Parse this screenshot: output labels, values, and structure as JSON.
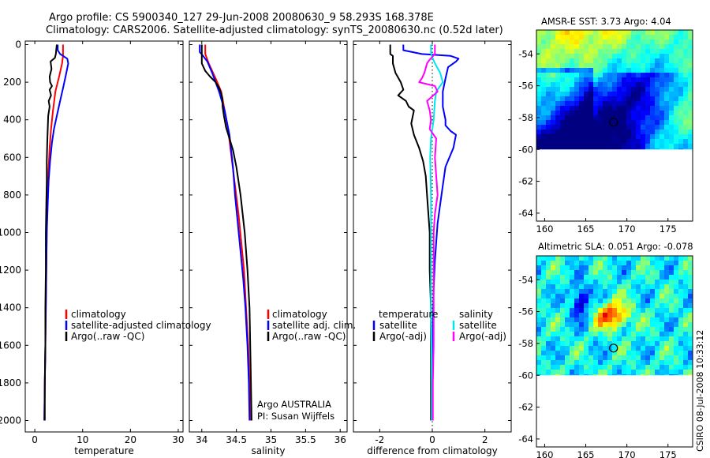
{
  "figure": {
    "title_line1": "Argo profile: CS 5900340_127 29-Jun-2008 20080630_9 58.293S 168.378E",
    "title_line2": "Climatology: CARS2006. Satellite-adjusted climatology: synTS_20080630.nc (0.52d later)",
    "footer": "CSIRO 08-Jul-2008 10:33:12",
    "credit_line1": "Argo AUSTRALIA",
    "credit_line2": "PI: Susan Wijffels"
  },
  "colors": {
    "climatology": "#ff0000",
    "satellite": "#0000ff",
    "argo": "#000000",
    "salinity_satellite": "#00e5ee",
    "salinity_argo": "#ff00ff",
    "map_land_missing": "#ffffff"
  },
  "chart_data": [
    {
      "id": "temperature",
      "type": "line",
      "xlabel": "temperature",
      "ylabel": "",
      "xlim": [
        -2,
        31
      ],
      "ylim": [
        2050,
        0
      ],
      "xticks": [
        "0",
        "10",
        "20",
        "30"
      ],
      "yticks": [
        "0",
        "200",
        "400",
        "600",
        "800",
        "1000",
        "1200",
        "1400",
        "1600",
        "1800",
        "2000"
      ],
      "legend_position": "lower-right",
      "series": [
        {
          "name": "climatology",
          "color": "#ff0000",
          "points": [
            [
              5.9,
              0
            ],
            [
              5.9,
              60
            ],
            [
              5.7,
              100
            ],
            [
              5.0,
              180
            ],
            [
              4.3,
              250
            ],
            [
              3.8,
              350
            ],
            [
              3.4,
              450
            ],
            [
              3.1,
              550
            ],
            [
              2.8,
              700
            ],
            [
              2.6,
              850
            ],
            [
              2.5,
              1000
            ],
            [
              2.4,
              1200
            ],
            [
              2.3,
              1400
            ],
            [
              2.2,
              1600
            ],
            [
              2.1,
              1800
            ],
            [
              2.0,
              2000
            ]
          ]
        },
        {
          "name": "satellite-adjusted climatology",
          "color": "#0000ff",
          "points": [
            [
              4.8,
              0
            ],
            [
              4.8,
              30
            ],
            [
              5.3,
              50
            ],
            [
              6.8,
              75
            ],
            [
              7.0,
              100
            ],
            [
              6.6,
              150
            ],
            [
              6.0,
              220
            ],
            [
              5.3,
              300
            ],
            [
              4.6,
              380
            ],
            [
              4.0,
              450
            ],
            [
              3.6,
              520
            ],
            [
              3.2,
              620
            ],
            [
              2.9,
              720
            ],
            [
              2.7,
              850
            ],
            [
              2.5,
              1000
            ],
            [
              2.4,
              1200
            ],
            [
              2.3,
              1400
            ],
            [
              2.2,
              1600
            ],
            [
              2.1,
              1800
            ],
            [
              2.0,
              2000
            ]
          ]
        },
        {
          "name": "Argo(..raw -QC)",
          "color": "#000000",
          "points": [
            [
              4.6,
              0
            ],
            [
              4.4,
              50
            ],
            [
              4.2,
              70
            ],
            [
              3.3,
              90
            ],
            [
              3.5,
              130
            ],
            [
              3.1,
              170
            ],
            [
              3.2,
              200
            ],
            [
              3.6,
              220
            ],
            [
              3.1,
              240
            ],
            [
              3.4,
              270
            ],
            [
              2.9,
              300
            ],
            [
              3.1,
              330
            ],
            [
              2.8,
              380
            ],
            [
              2.7,
              450
            ],
            [
              2.6,
              520
            ],
            [
              2.5,
              620
            ],
            [
              2.5,
              720
            ],
            [
              2.4,
              850
            ],
            [
              2.3,
              1000
            ],
            [
              2.3,
              1200
            ],
            [
              2.2,
              1400
            ],
            [
              2.2,
              1600
            ],
            [
              2.1,
              1800
            ],
            [
              2.1,
              2000
            ]
          ]
        }
      ]
    },
    {
      "id": "salinity",
      "type": "line",
      "xlabel": "salinity",
      "ylabel": "",
      "xlim": [
        33.82,
        36.1
      ],
      "ylim": [
        2050,
        0
      ],
      "xticks": [
        "34",
        "34.5",
        "35",
        "35.5",
        "36"
      ],
      "legend_position": "lower-right",
      "series": [
        {
          "name": "climatology",
          "color": "#ff0000",
          "points": [
            [
              34.05,
              0
            ],
            [
              34.05,
              50
            ],
            [
              34.1,
              100
            ],
            [
              34.2,
              180
            ],
            [
              34.28,
              250
            ],
            [
              34.32,
              330
            ],
            [
              34.38,
              450
            ],
            [
              34.43,
              600
            ],
            [
              34.48,
              750
            ],
            [
              34.53,
              900
            ],
            [
              34.57,
              1050
            ],
            [
              34.61,
              1200
            ],
            [
              34.64,
              1400
            ],
            [
              34.67,
              1600
            ],
            [
              34.69,
              1800
            ],
            [
              34.7,
              2000
            ]
          ]
        },
        {
          "name": "satellite adj. clim.",
          "color": "#0000ff",
          "points": [
            [
              33.97,
              0
            ],
            [
              33.97,
              40
            ],
            [
              34.02,
              60
            ],
            [
              34.08,
              90
            ],
            [
              34.15,
              150
            ],
            [
              34.25,
              250
            ],
            [
              34.33,
              350
            ],
            [
              34.4,
              480
            ],
            [
              34.45,
              650
            ],
            [
              34.48,
              800
            ],
            [
              34.52,
              950
            ],
            [
              34.56,
              1100
            ],
            [
              34.6,
              1250
            ],
            [
              34.63,
              1400
            ],
            [
              34.66,
              1600
            ],
            [
              34.68,
              1800
            ],
            [
              34.69,
              2000
            ]
          ]
        },
        {
          "name": "Argo(..raw -QC)",
          "color": "#000000",
          "points": [
            [
              34.0,
              0
            ],
            [
              34.0,
              100
            ],
            [
              34.05,
              140
            ],
            [
              34.12,
              170
            ],
            [
              34.2,
              200
            ],
            [
              34.25,
              230
            ],
            [
              34.28,
              260
            ],
            [
              34.3,
              290
            ],
            [
              34.3,
              330
            ],
            [
              34.32,
              380
            ],
            [
              34.35,
              440
            ],
            [
              34.4,
              500
            ],
            [
              34.45,
              560
            ],
            [
              34.5,
              650
            ],
            [
              34.56,
              800
            ],
            [
              34.62,
              1000
            ],
            [
              34.66,
              1200
            ],
            [
              34.69,
              1400
            ],
            [
              34.7,
              1600
            ],
            [
              34.71,
              1800
            ],
            [
              34.72,
              2000
            ]
          ]
        }
      ]
    },
    {
      "id": "difference",
      "type": "line",
      "xlabel": "difference from climatology",
      "ylabel": "",
      "xlim": [
        -3,
        3
      ],
      "ylim": [
        2050,
        0
      ],
      "xticks": [
        "-2",
        "0",
        "2"
      ],
      "legend_position": "lower-center",
      "legend_groups": [
        "temperature",
        "salinity"
      ],
      "series": [
        {
          "name": "satellite",
          "group": "temperature",
          "color": "#0000ff",
          "points": [
            [
              -1.1,
              0
            ],
            [
              -1.1,
              30
            ],
            [
              -0.4,
              50
            ],
            [
              0.7,
              60
            ],
            [
              1.0,
              75
            ],
            [
              0.9,
              90
            ],
            [
              0.6,
              120
            ],
            [
              0.5,
              180
            ],
            [
              0.4,
              250
            ],
            [
              0.4,
              330
            ],
            [
              0.5,
              400
            ],
            [
              0.5,
              430
            ],
            [
              0.7,
              460
            ],
            [
              0.9,
              480
            ],
            [
              0.8,
              550
            ],
            [
              0.5,
              650
            ],
            [
              0.4,
              750
            ],
            [
              0.3,
              850
            ],
            [
              0.2,
              950
            ],
            [
              0.15,
              1050
            ],
            [
              0.1,
              1150
            ],
            [
              0.05,
              1300
            ],
            [
              0.02,
              1500
            ],
            [
              0.0,
              1700
            ],
            [
              0.0,
              1900
            ],
            [
              0.0,
              2000
            ]
          ]
        },
        {
          "name": "Argo(-adj)",
          "group": "temperature",
          "color": "#000000",
          "points": [
            [
              -1.6,
              0
            ],
            [
              -1.6,
              50
            ],
            [
              -1.5,
              60
            ],
            [
              -1.5,
              100
            ],
            [
              -1.4,
              150
            ],
            [
              -1.2,
              200
            ],
            [
              -1.1,
              240
            ],
            [
              -1.3,
              270
            ],
            [
              -1.0,
              300
            ],
            [
              -0.9,
              330
            ],
            [
              -0.7,
              350
            ],
            [
              -0.8,
              420
            ],
            [
              -0.7,
              480
            ],
            [
              -0.5,
              550
            ],
            [
              -0.35,
              620
            ],
            [
              -0.25,
              700
            ],
            [
              -0.2,
              800
            ],
            [
              -0.15,
              900
            ],
            [
              -0.1,
              1000
            ],
            [
              -0.1,
              1200
            ],
            [
              -0.05,
              1400
            ],
            [
              -0.05,
              1600
            ],
            [
              -0.05,
              1800
            ],
            [
              -0.05,
              2000
            ]
          ]
        },
        {
          "name": "satellite",
          "group": "salinity",
          "color": "#00e5ee",
          "points": [
            [
              -0.05,
              0
            ],
            [
              -0.05,
              40
            ],
            [
              -0.02,
              60
            ],
            [
              0.1,
              100
            ],
            [
              0.3,
              150
            ],
            [
              0.4,
              200
            ],
            [
              0.15,
              250
            ],
            [
              0.1,
              300
            ],
            [
              0.05,
              400
            ],
            [
              -0.05,
              500
            ],
            [
              -0.08,
              600
            ],
            [
              -0.05,
              800
            ],
            [
              -0.05,
              1000
            ],
            [
              -0.05,
              1200
            ],
            [
              -0.05,
              1400
            ],
            [
              -0.03,
              1600
            ],
            [
              -0.02,
              1800
            ],
            [
              -0.02,
              2000
            ]
          ]
        },
        {
          "name": "Argo(-adj)",
          "group": "salinity",
          "color": "#ff00ff",
          "points": [
            [
              0.1,
              0
            ],
            [
              0.1,
              50
            ],
            [
              -0.1,
              80
            ],
            [
              -0.2,
              100
            ],
            [
              -0.3,
              150
            ],
            [
              -0.4,
              180
            ],
            [
              -0.5,
              200
            ],
            [
              0.1,
              220
            ],
            [
              0.2,
              250
            ],
            [
              -0.2,
              300
            ],
            [
              -0.1,
              350
            ],
            [
              -0.05,
              400
            ],
            [
              -0.1,
              450
            ],
            [
              0.15,
              500
            ],
            [
              0.1,
              600
            ],
            [
              0.15,
              700
            ],
            [
              0.2,
              800
            ],
            [
              0.1,
              900
            ],
            [
              0.05,
              1000
            ],
            [
              0.05,
              1200
            ],
            [
              0.05,
              1400
            ],
            [
              0.05,
              1600
            ],
            [
              0.02,
              1800
            ],
            [
              0.02,
              2000
            ]
          ]
        }
      ]
    }
  ],
  "maps": [
    {
      "id": "sst",
      "title": "AMSR-E SST: 3.73  Argo: 4.04",
      "type": "heatmap",
      "xlim": [
        159,
        178
      ],
      "ylim": [
        -64.5,
        -52.5
      ],
      "xticks": [
        "160",
        "165",
        "170",
        "175"
      ],
      "yticks": [
        "-54",
        "-56",
        "-58",
        "-60",
        "-62",
        "-64"
      ],
      "data_extent_lat": [
        -60,
        -52.5
      ],
      "argo_marker": {
        "lon": 168.378,
        "lat": -58.293
      }
    },
    {
      "id": "sla",
      "title": "Altimetric SLA: 0.051  Argo: -0.078",
      "type": "heatmap",
      "xlim": [
        159,
        178
      ],
      "ylim": [
        -64.5,
        -52.5
      ],
      "xticks": [
        "160",
        "165",
        "170",
        "175"
      ],
      "yticks": [
        "-54",
        "-56",
        "-58",
        "-60",
        "-62",
        "-64"
      ],
      "data_extent_lat": [
        -60,
        -52.5
      ],
      "argo_marker": {
        "lon": 168.378,
        "lat": -58.293
      }
    }
  ]
}
